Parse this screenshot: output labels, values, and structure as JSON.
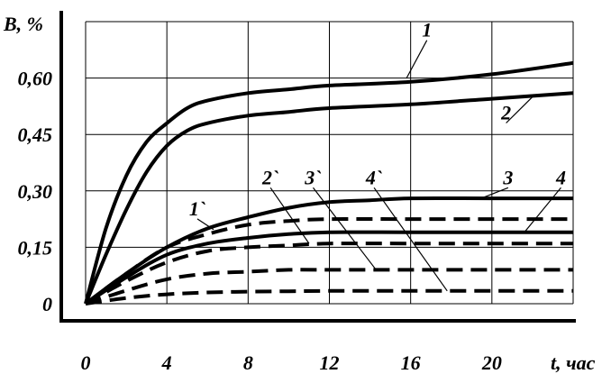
{
  "chart_data": {
    "type": "line",
    "ylabel": "B, %",
    "xlabel": "t, час",
    "xlim": [
      0,
      24
    ],
    "ylim": [
      0,
      0.75
    ],
    "x_ticks": [
      0,
      4,
      8,
      12,
      16,
      20
    ],
    "x_tick_labels": [
      "0",
      "4",
      "8",
      "12",
      "16",
      "20"
    ],
    "y_ticks": [
      0,
      0.15,
      0.3,
      0.45,
      0.6
    ],
    "y_tick_labels": [
      "0",
      "0,15",
      "0,30",
      "0,45",
      "0,60"
    ],
    "grid": true,
    "series": [
      {
        "name": "1",
        "style": "solid",
        "x": [
          0,
          1,
          2,
          3,
          4,
          5,
          6,
          8,
          10,
          12,
          16,
          20,
          24
        ],
        "y": [
          0,
          0.2,
          0.34,
          0.43,
          0.48,
          0.52,
          0.54,
          0.56,
          0.57,
          0.58,
          0.59,
          0.61,
          0.64
        ]
      },
      {
        "name": "2",
        "style": "solid",
        "x": [
          0,
          1,
          2,
          3,
          4,
          5,
          6,
          8,
          10,
          12,
          16,
          20,
          24
        ],
        "y": [
          0,
          0.13,
          0.25,
          0.35,
          0.42,
          0.46,
          0.48,
          0.5,
          0.51,
          0.52,
          0.53,
          0.545,
          0.56
        ]
      },
      {
        "name": "3",
        "style": "solid",
        "x": [
          0,
          2,
          4,
          6,
          8,
          10,
          12,
          14,
          16,
          20,
          24
        ],
        "y": [
          0,
          0.08,
          0.15,
          0.2,
          0.23,
          0.255,
          0.27,
          0.275,
          0.28,
          0.28,
          0.28
        ]
      },
      {
        "name": "4",
        "style": "solid",
        "x": [
          0,
          2,
          4,
          6,
          8,
          10,
          12,
          16,
          20,
          24
        ],
        "y": [
          0,
          0.07,
          0.13,
          0.16,
          0.175,
          0.185,
          0.19,
          0.19,
          0.19,
          0.19
        ]
      },
      {
        "name": "1`",
        "style": "dashed",
        "x": [
          0,
          2,
          4,
          6,
          8,
          10,
          12,
          16,
          20,
          24
        ],
        "y": [
          0,
          0.08,
          0.15,
          0.185,
          0.21,
          0.22,
          0.225,
          0.225,
          0.225,
          0.225
        ]
      },
      {
        "name": "2`",
        "style": "dashed",
        "x": [
          0,
          2,
          4,
          6,
          8,
          10,
          12,
          16,
          20,
          24
        ],
        "y": [
          0,
          0.06,
          0.11,
          0.14,
          0.15,
          0.155,
          0.16,
          0.16,
          0.16,
          0.16
        ]
      },
      {
        "name": "3`",
        "style": "dashed",
        "x": [
          0,
          2,
          4,
          6,
          8,
          10,
          12,
          16,
          20,
          24
        ],
        "y": [
          0,
          0.035,
          0.065,
          0.08,
          0.085,
          0.09,
          0.09,
          0.09,
          0.09,
          0.09
        ]
      },
      {
        "name": "4`",
        "style": "dashed",
        "x": [
          0,
          2,
          4,
          6,
          8,
          10,
          12,
          16,
          20,
          24
        ],
        "y": [
          0,
          0.015,
          0.025,
          0.03,
          0.032,
          0.033,
          0.034,
          0.034,
          0.034,
          0.034
        ]
      }
    ],
    "annotations": [
      {
        "text": "1",
        "series": "1",
        "label_at": [
          16.8,
          0.71
        ],
        "point_at": [
          15.8,
          0.6
        ]
      },
      {
        "text": "2",
        "series": "2",
        "label_at": [
          20.7,
          0.49
        ],
        "point_at": [
          22.0,
          0.55
        ]
      },
      {
        "text": "3",
        "series": "3",
        "label_at": [
          20.8,
          0.318
        ],
        "point_at": [
          19.6,
          0.283
        ]
      },
      {
        "text": "4",
        "series": "4",
        "label_at": [
          23.4,
          0.318
        ],
        "point_at": [
          21.6,
          0.19
        ]
      },
      {
        "text": "1`",
        "series": "1`",
        "label_at": [
          5.5,
          0.235
        ],
        "point_at": [
          6.3,
          0.197
        ]
      },
      {
        "text": "2`",
        "series": "2`",
        "label_at": [
          9.1,
          0.318
        ],
        "point_at": [
          11.0,
          0.16
        ]
      },
      {
        "text": "3`",
        "series": "3`",
        "label_at": [
          11.2,
          0.318
        ],
        "point_at": [
          14.3,
          0.09
        ]
      },
      {
        "text": "4`",
        "series": "4`",
        "label_at": [
          14.2,
          0.318
        ],
        "point_at": [
          17.8,
          0.034
        ]
      }
    ]
  }
}
